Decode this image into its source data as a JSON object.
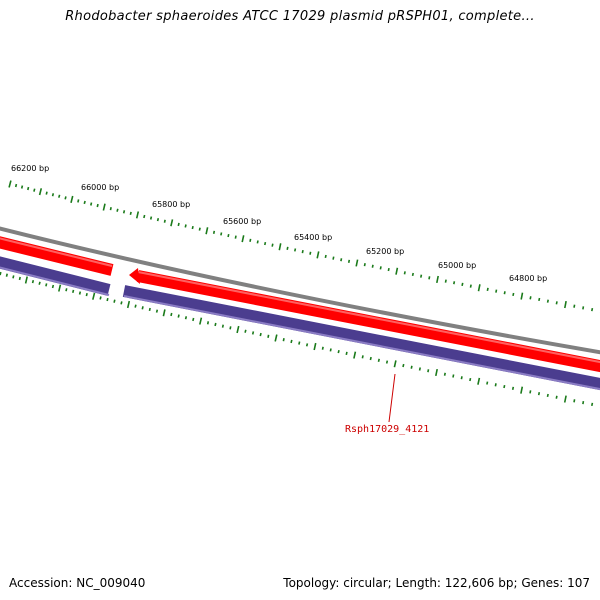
{
  "title": "Rhodobacter sphaeroides ATCC 17029 plasmid pRSPH01, complete...",
  "ticks": [
    {
      "label": "66200 bp"
    },
    {
      "label": "66000 bp"
    },
    {
      "label": "65800 bp"
    },
    {
      "label": "65600 bp"
    },
    {
      "label": "65400 bp"
    },
    {
      "label": "65200 bp"
    },
    {
      "label": "65000 bp"
    },
    {
      "label": "64800 bp"
    }
  ],
  "gene_label": "Rsph17029_4121",
  "footer": {
    "accession": "Accession: NC_009040",
    "summary": "Topology: circular; Length: 122,606 bp; Genes: 107"
  },
  "colors": {
    "backbone": "#808080",
    "forward_strand": "#ff0000",
    "reverse_strand": "#4b3d8f",
    "tick": "#1a7a1a",
    "gene_label": "#cc0000"
  }
}
